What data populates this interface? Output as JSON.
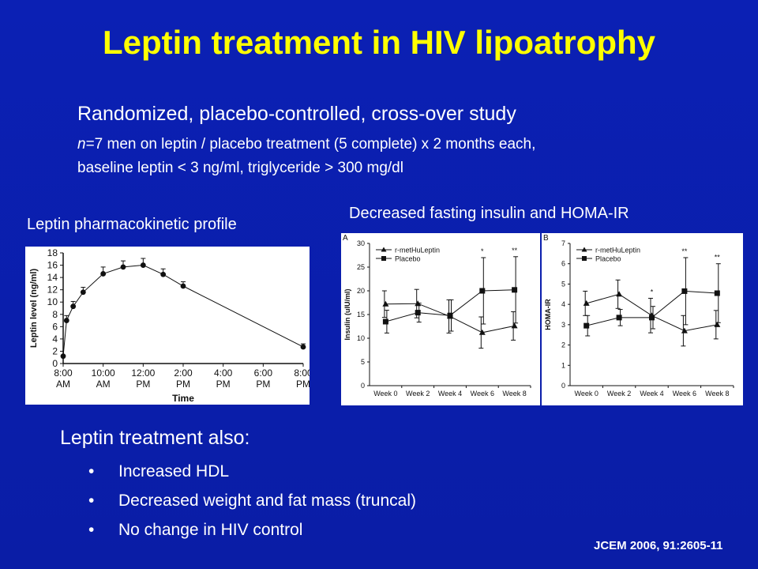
{
  "slide": {
    "title": "Leptin treatment in HIV lipoatrophy",
    "design_heading": "Randomized,  placebo-controlled,  cross-over study",
    "design_line1_n": "n",
    "design_line1_rest": "=7 men on leptin / placebo treatment (5 complete) x 2 months each,",
    "design_line2": "baseline leptin < 3 ng/ml, triglyceride > 300 mg/dl",
    "caption_pk": "Leptin pharmacokinetic profile",
    "caption_insulin": "Decreased fasting insulin and HOMA-IR",
    "also_heading": "Leptin treatment also:",
    "bullet_symbol": "•",
    "bullets": [
      "Increased HDL",
      "Decreased weight and fat mass (truncal)",
      "No change in HIV control"
    ],
    "citation": "JCEM 2006, 91:2605-11"
  },
  "colors": {
    "background": "#0a1fad",
    "title": "#ffff00",
    "text": "#ffffff",
    "plot_ink": "#111111",
    "panel": "#ffffff"
  },
  "chart_data": [
    {
      "id": "pk",
      "type": "line",
      "title": "",
      "xlabel": "Time",
      "ylabel": "Leptin level (ng/ml)",
      "x_unit": "hours after 8:00 AM",
      "xlim": [
        0,
        12
      ],
      "ylim": [
        0,
        18
      ],
      "yticks": [
        0,
        2,
        4,
        6,
        8,
        10,
        12,
        14,
        16,
        18
      ],
      "xticks": [
        {
          "x": 0,
          "line1": "8:00",
          "line2": "AM"
        },
        {
          "x": 2,
          "line1": "10:00",
          "line2": "AM"
        },
        {
          "x": 4,
          "line1": "12:00",
          "line2": "PM"
        },
        {
          "x": 6,
          "line1": "2:00",
          "line2": "PM"
        },
        {
          "x": 8,
          "line1": "4:00",
          "line2": "PM"
        },
        {
          "x": 10,
          "line1": "6:00",
          "line2": "PM"
        },
        {
          "x": 12,
          "line1": "8:00",
          "line2": "PM"
        }
      ],
      "series": [
        {
          "x": [
            0,
            0.17,
            0.5,
            1,
            2,
            3,
            4,
            5,
            6,
            12
          ],
          "y": [
            1.2,
            7,
            9.3,
            11.6,
            14.6,
            15.7,
            16,
            14.5,
            12.6,
            2.7
          ],
          "err": [
            0,
            0.8,
            0.8,
            0.8,
            1.1,
            1.0,
            1.1,
            0.9,
            0.7,
            0.5
          ]
        }
      ],
      "grid": false
    },
    {
      "id": "insulin",
      "type": "line",
      "panel_label": "A",
      "title": "",
      "xlabel": "",
      "ylabel": "Insulin (uIU/ml)",
      "categories": [
        "Week 0",
        "Week 2",
        "Week 4",
        "Week 6",
        "Week 8"
      ],
      "ylim": [
        0,
        30
      ],
      "yticks": [
        0,
        5,
        10,
        15,
        20,
        25,
        30
      ],
      "series": [
        {
          "name": "r-metHuLeptin",
          "marker": "triangle",
          "values": [
            17.2,
            17.3,
            14.6,
            11.2,
            12.6
          ],
          "err": [
            2.8,
            3.0,
            3.5,
            3.3,
            3.0
          ]
        },
        {
          "name": "Placebo",
          "marker": "square",
          "values": [
            13.5,
            15.4,
            14.8,
            20,
            20.2
          ],
          "err": [
            2.4,
            2.0,
            3.3,
            7.0,
            7.0
          ]
        }
      ],
      "annotations": [
        {
          "category": "Week 6",
          "text": "*"
        },
        {
          "category": "Week 8",
          "text": "**"
        }
      ],
      "legend": "top-left",
      "grid": false
    },
    {
      "id": "homa",
      "type": "line",
      "panel_label": "B",
      "title": "",
      "xlabel": "",
      "ylabel": "HOMA-IR",
      "categories": [
        "Week 0",
        "Week 2",
        "Week 4",
        "Week 6",
        "Week 8"
      ],
      "ylim": [
        0,
        7
      ],
      "yticks": [
        0,
        1,
        2,
        3,
        4,
        5,
        6,
        7
      ],
      "series": [
        {
          "name": "r-metHuLeptin",
          "marker": "triangle",
          "values": [
            4.05,
            4.5,
            3.45,
            2.7,
            3.0
          ],
          "err": [
            0.6,
            0.7,
            0.85,
            0.75,
            0.7
          ]
        },
        {
          "name": "Placebo",
          "marker": "square",
          "values": [
            2.95,
            3.35,
            3.35,
            4.65,
            4.55
          ],
          "err": [
            0.5,
            0.4,
            0.55,
            1.65,
            1.45
          ]
        }
      ],
      "annotations": [
        {
          "category": "Week 4",
          "text": "*"
        },
        {
          "category": "Week 6",
          "text": "**"
        },
        {
          "category": "Week 8",
          "text": "**"
        }
      ],
      "legend": "top-left",
      "grid": false
    }
  ]
}
